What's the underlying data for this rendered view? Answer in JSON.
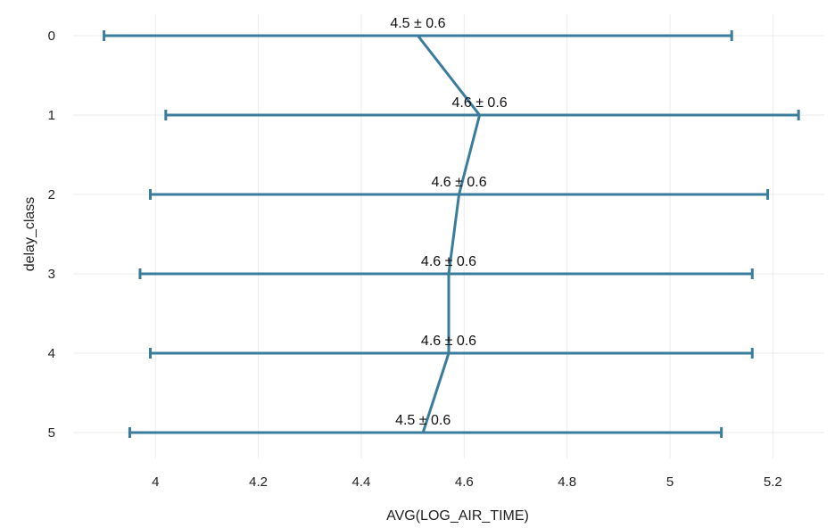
{
  "chart_data": {
    "type": "line",
    "orientation": "horizontal",
    "xlabel": "AVG(LOG_AIR_TIME)",
    "ylabel": "delay_class",
    "xlim": [
      3.84,
      5.3
    ],
    "x_ticks": [
      4,
      4.2,
      4.4,
      4.6,
      4.8,
      5,
      5.2
    ],
    "x_tick_labels": [
      "4",
      "4.2",
      "4.4",
      "4.6",
      "4.8",
      "5",
      "5.2"
    ],
    "categories": [
      "0",
      "1",
      "2",
      "3",
      "4",
      "5"
    ],
    "series": [
      {
        "color": "#3a7c9c",
        "mean": [
          4.51,
          4.63,
          4.59,
          4.57,
          4.57,
          4.52
        ],
        "low": [
          3.9,
          4.02,
          3.99,
          3.97,
          3.99,
          3.95
        ],
        "high": [
          5.12,
          5.25,
          5.19,
          5.16,
          5.16,
          5.1
        ],
        "labels": [
          "4.5 ± 0.6",
          "4.6 ± 0.6",
          "4.6 ± 0.6",
          "4.6 ± 0.6",
          "4.6 ± 0.6",
          "4.5 ± 0.6"
        ]
      }
    ],
    "grid": true,
    "legend": "none"
  }
}
